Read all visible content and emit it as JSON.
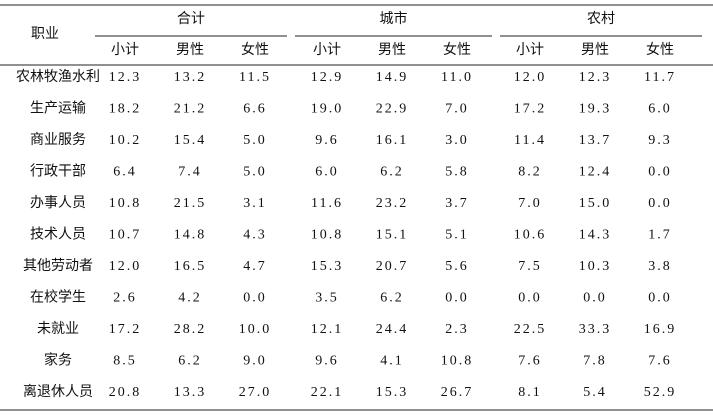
{
  "table": {
    "row_header": "职业",
    "groups": [
      {
        "name": "合计",
        "columns": [
          "小计",
          "男性",
          "女性"
        ]
      },
      {
        "name": "城市",
        "columns": [
          "小计",
          "男性",
          "女性"
        ]
      },
      {
        "name": "农村",
        "columns": [
          "小计",
          "男性",
          "女性"
        ]
      }
    ],
    "rows": [
      {
        "label": "农林牧渔水利",
        "cells": [
          "12.3",
          "13.2",
          "11.5",
          "12.9",
          "14.9",
          "11.0",
          "12.0",
          "12.3",
          "11.7"
        ]
      },
      {
        "label": "生产运输",
        "cells": [
          "18.2",
          "21.2",
          "6.6",
          "19.0",
          "22.9",
          "7.0",
          "17.2",
          "19.3",
          "6.0"
        ]
      },
      {
        "label": "商业服务",
        "cells": [
          "10.2",
          "15.4",
          "5.0",
          "9.6",
          "16.1",
          "3.0",
          "11.4",
          "13.7",
          "9.3"
        ]
      },
      {
        "label": "行政干部",
        "cells": [
          "6.4",
          "7.4",
          "5.0",
          "6.0",
          "6.2",
          "5.8",
          "8.2",
          "12.4",
          "0.0"
        ]
      },
      {
        "label": "办事人员",
        "cells": [
          "10.8",
          "21.5",
          "3.1",
          "11.6",
          "23.2",
          "3.7",
          "7.0",
          "15.0",
          "0.0"
        ]
      },
      {
        "label": "技术人员",
        "cells": [
          "10.7",
          "14.8",
          "4.3",
          "10.8",
          "15.1",
          "5.1",
          "10.6",
          "14.3",
          "1.7"
        ]
      },
      {
        "label": "其他劳动者",
        "cells": [
          "12.0",
          "16.5",
          "4.7",
          "15.3",
          "20.7",
          "5.6",
          "7.5",
          "10.3",
          "3.8"
        ]
      },
      {
        "label": "在校学生",
        "cells": [
          "2.6",
          "4.2",
          "0.0",
          "3.5",
          "6.2",
          "0.0",
          "0.0",
          "0.0",
          "0.0"
        ]
      },
      {
        "label": "未就业",
        "cells": [
          "17.2",
          "28.2",
          "10.0",
          "12.1",
          "24.4",
          "2.3",
          "22.5",
          "33.3",
          "16.9"
        ]
      },
      {
        "label": "家务",
        "cells": [
          "8.5",
          "6.2",
          "9.0",
          "9.6",
          "4.1",
          "10.8",
          "7.6",
          "7.8",
          "7.6"
        ]
      },
      {
        "label": "离退休人员",
        "cells": [
          "20.8",
          "13.3",
          "27.0",
          "22.1",
          "15.3",
          "26.7",
          "8.1",
          "5.4",
          "52.9"
        ]
      }
    ]
  }
}
